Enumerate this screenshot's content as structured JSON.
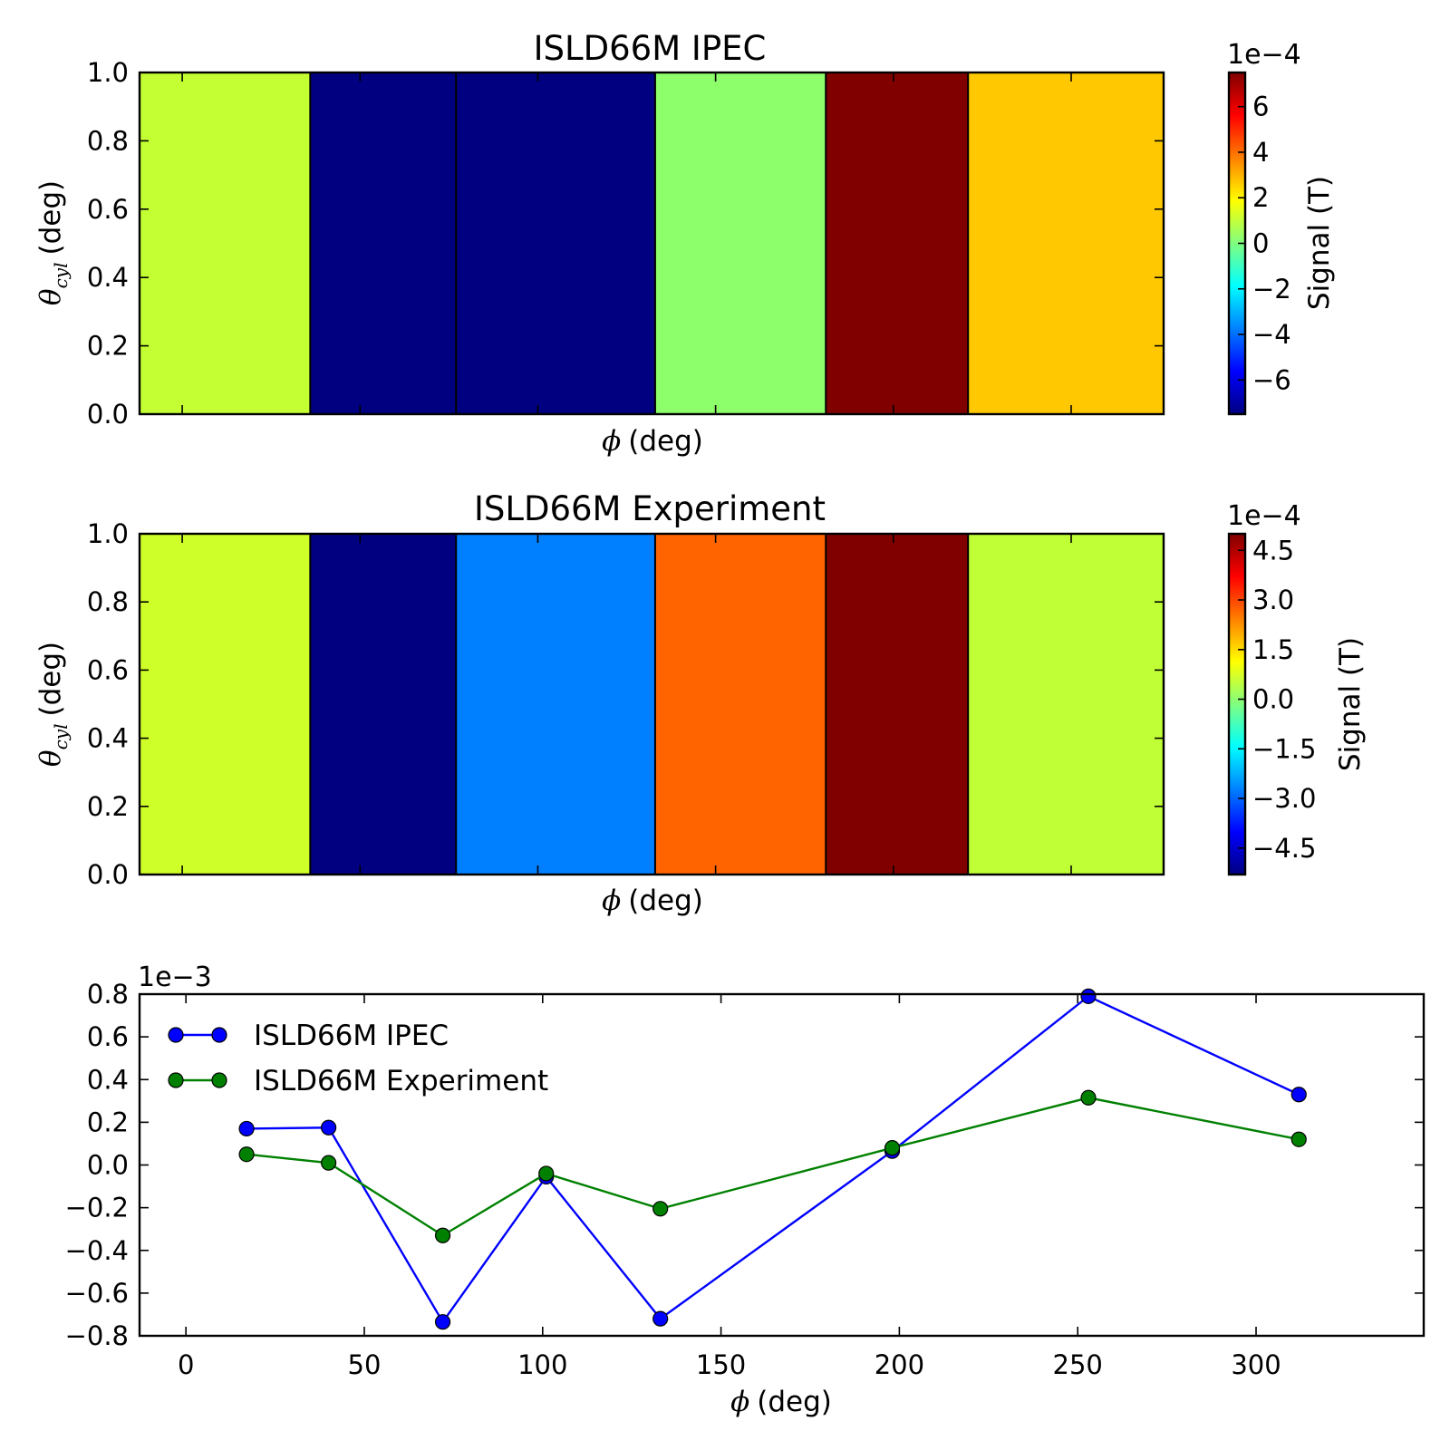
{
  "chart_data": [
    {
      "type": "heatmap",
      "title": "ISLD66M IPEC",
      "ylabel": "(deg)",
      "xlabel": "(deg)",
      "ylim": [
        0,
        1
      ],
      "y_ticks": [
        "0.0",
        "0.2",
        "0.4",
        "0.6",
        "0.8",
        "1.0"
      ],
      "cell_edges_phi": [
        -12,
        36,
        77,
        133,
        181,
        221,
        276
      ],
      "values": [
        0.00018,
        -0.00073,
        -0.00073,
        6e-05,
        0.00075,
        0.00033
      ],
      "colors": [
        "#c4ff33",
        "#000080",
        "#000080",
        "#8cff6a",
        "#800000",
        "#ffc800"
      ],
      "colorbar": {
        "label": "Signal (T)",
        "exponent": "1e−4",
        "range": [
          -0.00075,
          0.00075
        ],
        "ticks": [
          -6,
          -4,
          -2,
          0,
          2,
          4,
          6
        ],
        "tick_labels": [
          "−6",
          "−4",
          "−2",
          "0",
          "2",
          "4",
          "6"
        ]
      }
    },
    {
      "type": "heatmap",
      "title": "ISLD66M Experiment",
      "ylabel": "(deg)",
      "xlabel": "(deg)",
      "ylim": [
        0,
        1
      ],
      "y_ticks": [
        "0.0",
        "0.2",
        "0.4",
        "0.6",
        "0.8",
        "1.0"
      ],
      "cell_edges_phi": [
        -12,
        36,
        77,
        133,
        181,
        221,
        276
      ],
      "values": [
        5e-05,
        -0.00052,
        -0.00033,
        0.00032,
        0.0005,
        0.00012
      ],
      "colors": [
        "#cfff29",
        "#000080",
        "#0080ff",
        "#ff6400",
        "#800000",
        "#c0ff36"
      ],
      "colorbar": {
        "label": "Signal (T)",
        "exponent": "1e−4",
        "range": [
          -0.00053,
          0.0005
        ],
        "ticks": [
          -4.5,
          -3.0,
          -1.5,
          0.0,
          1.5,
          3.0,
          4.5
        ],
        "tick_labels": [
          "−4.5",
          "−3.0",
          "−1.5",
          "0.0",
          "1.5",
          "3.0",
          "4.5"
        ]
      }
    },
    {
      "type": "line",
      "xlabel": "(deg)",
      "exponent": "1e−3",
      "xlim": [
        -13,
        347
      ],
      "ylim": [
        -0.8,
        0.8
      ],
      "x_ticks": [
        0,
        50,
        100,
        150,
        200,
        250,
        300
      ],
      "y_ticks": [
        -0.8,
        -0.6,
        -0.4,
        -0.2,
        0.0,
        0.2,
        0.4,
        0.6,
        0.8
      ],
      "y_tick_labels": [
        "−0.8",
        "−0.6",
        "−0.4",
        "−0.2",
        "0.0",
        "0.2",
        "0.4",
        "0.6",
        "0.8"
      ],
      "legend_position": "top-left",
      "series": [
        {
          "name": "ISLD66M IPEC",
          "color": "#0000ff",
          "x": [
            17,
            40,
            72,
            101,
            133,
            198,
            253,
            312
          ],
          "y": [
            0.17,
            0.175,
            -0.735,
            -0.055,
            -0.72,
            0.065,
            0.79,
            0.33
          ]
        },
        {
          "name": "ISLD66M Experiment",
          "color": "#008000",
          "x": [
            17,
            40,
            72,
            101,
            133,
            198,
            253,
            312
          ],
          "y": [
            0.05,
            0.01,
            -0.33,
            -0.04,
            -0.205,
            0.08,
            0.315,
            0.12
          ]
        }
      ]
    }
  ],
  "symbols": {
    "phi": "ϕ",
    "theta": "θ",
    "theta_sub": "cyl"
  },
  "colormap": [
    "#000080",
    "#0000ff",
    "#0080ff",
    "#00ffff",
    "#80ff80",
    "#ffff00",
    "#ff8000",
    "#ff0000",
    "#800000"
  ]
}
